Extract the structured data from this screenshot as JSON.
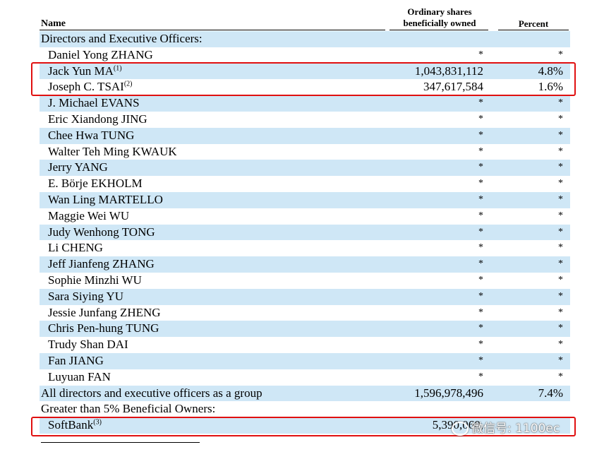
{
  "header": {
    "name_label": "Name",
    "shares_label_line1": "Ordinary shares",
    "shares_label_line2": "beneficially owned",
    "percent_label": "Percent"
  },
  "rows": [
    {
      "name": "Directors and Executive Officers:",
      "sup": "",
      "shares": "",
      "percent": "",
      "kind": "section"
    },
    {
      "name": "Daniel Yong ZHANG",
      "sup": "",
      "shares": "*",
      "percent": "*",
      "kind": "person"
    },
    {
      "name": "Jack Yun MA",
      "sup": "(1)",
      "shares": "1,043,831,112",
      "percent": "4.8%",
      "kind": "person"
    },
    {
      "name": "Joseph C. TSAI",
      "sup": "(2)",
      "shares": "347,617,584",
      "percent": "1.6%",
      "kind": "person"
    },
    {
      "name": "J. Michael EVANS",
      "sup": "",
      "shares": "*",
      "percent": "*",
      "kind": "person"
    },
    {
      "name": "Eric Xiandong JING",
      "sup": "",
      "shares": "*",
      "percent": "*",
      "kind": "person"
    },
    {
      "name": "Chee Hwa TUNG",
      "sup": "",
      "shares": "*",
      "percent": "*",
      "kind": "person"
    },
    {
      "name": "Walter Teh Ming KWAUK",
      "sup": "",
      "shares": "*",
      "percent": "*",
      "kind": "person"
    },
    {
      "name": "Jerry YANG",
      "sup": "",
      "shares": "*",
      "percent": "*",
      "kind": "person"
    },
    {
      "name": "E. Börje EKHOLM",
      "sup": "",
      "shares": "*",
      "percent": "*",
      "kind": "person"
    },
    {
      "name": "Wan Ling MARTELLO",
      "sup": "",
      "shares": "*",
      "percent": "*",
      "kind": "person"
    },
    {
      "name": "Maggie Wei WU",
      "sup": "",
      "shares": "*",
      "percent": "*",
      "kind": "person"
    },
    {
      "name": "Judy Wenhong TONG",
      "sup": "",
      "shares": "*",
      "percent": "*",
      "kind": "person"
    },
    {
      "name": "Li CHENG",
      "sup": "",
      "shares": "*",
      "percent": "*",
      "kind": "person"
    },
    {
      "name": "Jeff Jianfeng ZHANG",
      "sup": "",
      "shares": "*",
      "percent": "*",
      "kind": "person"
    },
    {
      "name": "Sophie Minzhi WU",
      "sup": "",
      "shares": "*",
      "percent": "*",
      "kind": "person"
    },
    {
      "name": "Sara Siying YU",
      "sup": "",
      "shares": "*",
      "percent": "*",
      "kind": "person"
    },
    {
      "name": "Jessie Junfang ZHENG",
      "sup": "",
      "shares": "*",
      "percent": "*",
      "kind": "person"
    },
    {
      "name": "Chris Pen-hung TUNG",
      "sup": "",
      "shares": "*",
      "percent": "*",
      "kind": "person"
    },
    {
      "name": "Trudy Shan DAI",
      "sup": "",
      "shares": "*",
      "percent": "*",
      "kind": "person"
    },
    {
      "name": "Fan JIANG",
      "sup": "",
      "shares": "*",
      "percent": "*",
      "kind": "person"
    },
    {
      "name": "Luyuan FAN",
      "sup": "",
      "shares": "*",
      "percent": "*",
      "kind": "person"
    },
    {
      "name": "All directors and executive officers as a group",
      "sup": "",
      "shares": "1,596,978,496",
      "percent": "7.4%",
      "kind": "total"
    },
    {
      "name": "Greater than 5% Beneficial Owners:",
      "sup": "",
      "shares": "",
      "percent": "",
      "kind": "section"
    },
    {
      "name": "SoftBank",
      "sup": "(3)",
      "shares": "5,390,060,",
      "percent": "",
      "kind": "person"
    }
  ],
  "watermark": {
    "text": "微信号: 1100ec"
  },
  "colors": {
    "row_shade": "#cfe7f6",
    "highlight_box": "#e01010"
  }
}
